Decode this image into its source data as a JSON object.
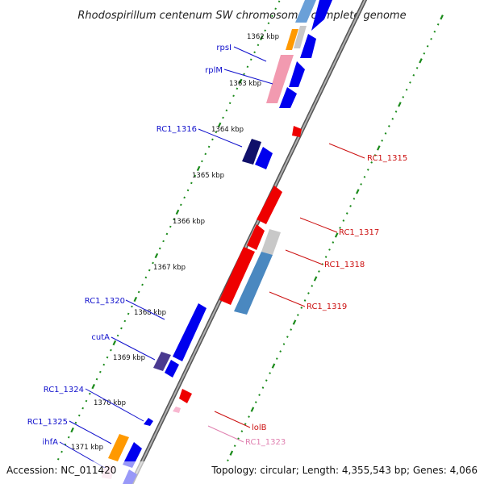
{
  "title": "Rhodospirillum centenum SW chromosome, complete genome",
  "footer": {
    "accession": "Accession: NC_011420",
    "summary": "Topology: circular; Length: 4,355,543 bp; Genes: 4,066"
  },
  "ticks": [
    "1362 kbp",
    "1363 kbp",
    "1364 kbp",
    "1365 kbp",
    "1366 kbp",
    "1367 kbp",
    "1368 kbp",
    "1369 kbp",
    "1370 kbp",
    "1371 kbp"
  ],
  "left_labels": [
    "rpsI",
    "rplM",
    "RC1_1316",
    "RC1_1320",
    "cutA",
    "RC1_1324",
    "RC1_1325",
    "ihfA"
  ],
  "right_labels": [
    "RC1_1315",
    "RC1_1317",
    "RC1_1318",
    "RC1_1319",
    "lolB",
    "RC1_1323"
  ],
  "colors": {
    "forward_cds": "#0000ee",
    "reverse_cds": "#ee0000",
    "rrna": "#f29ab0",
    "rna_pale": "#f8b7d0",
    "orange_gene": "#ff9900",
    "steel_gene": "#4a88c0",
    "navy_gene": "#10106a",
    "purple_gene": "#4a3a90",
    "backbone": "#8a8a8a",
    "tick_marks": "#1a8a1a",
    "left_label_color": "#1010cc",
    "right_label_color": "#cc1010",
    "lolB_label_color": "#cc1010",
    "rc1323_label_color": "#e080b0"
  }
}
